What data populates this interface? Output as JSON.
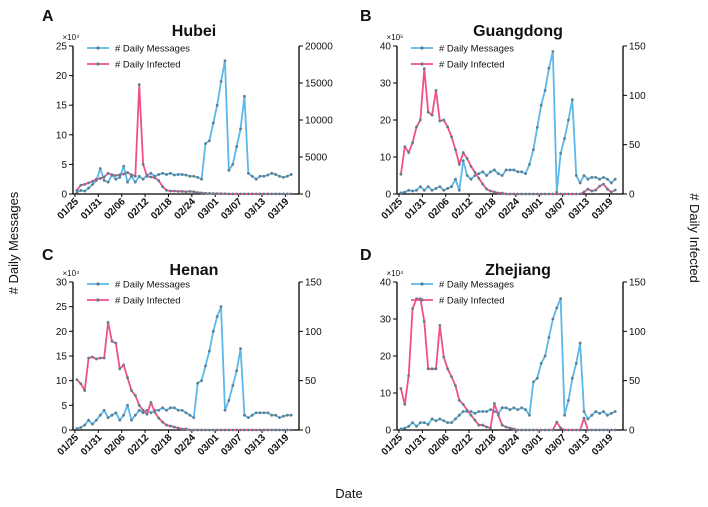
{
  "figure": {
    "xlabel": "Date",
    "ylabel_left": "# Daily Messages",
    "ylabel_right": "# Daily Infected",
    "legend_messages": "# Daily Messages",
    "legend_infected": "# Daily Infected",
    "colors": {
      "messages": "#5bb8e8",
      "infected": "#f0508a",
      "markers": "#5f7f8f",
      "axis": "#000000"
    }
  },
  "chart_data": [
    {
      "type": "line",
      "panel": "A",
      "title": "Hubei",
      "x_ticks": [
        "01/25",
        "01/31",
        "02/06",
        "02/12",
        "02/18",
        "02/24",
        "03/01",
        "03/07",
        "03/13",
        "03/19"
      ],
      "x_range": [
        0,
        58
      ],
      "left_axis": {
        "multiplier": "×10⁴",
        "ticks": [
          "0",
          "5",
          "10",
          "15",
          "20",
          "25"
        ],
        "range": [
          0,
          25
        ]
      },
      "right_axis": {
        "ticks": [
          "0",
          "5000",
          "10000",
          "15000",
          "20000"
        ],
        "range": [
          0,
          20000
        ]
      },
      "series": [
        {
          "name": "# Daily Messages",
          "axis": "left",
          "values": [
            0.3,
            0.6,
            0.5,
            1.0,
            1.6,
            2.3,
            4.3,
            2.3,
            2.0,
            3.2,
            2.5,
            2.8,
            4.7,
            2.0,
            3.0,
            2.0,
            3.0,
            2.5,
            3.2,
            3.5,
            3.0,
            3.3,
            3.5,
            3.3,
            3.5,
            3.2,
            3.3,
            3.3,
            3.2,
            3.0,
            3.0,
            2.8,
            2.5,
            8.5,
            9.0,
            12.0,
            15.0,
            19.0,
            22.5,
            4.0,
            5.0,
            8.0,
            11.0,
            16.5,
            3.5,
            3.0,
            2.5,
            3.0,
            3.0,
            3.2,
            3.5,
            3.3,
            3.0,
            2.8,
            3.0,
            3.3
          ]
        },
        {
          "name": "# Daily Infected",
          "axis": "right",
          "values": [
            500,
            1200,
            1300,
            1500,
            1700,
            2000,
            2100,
            2300,
            2800,
            2600,
            2500,
            2600,
            2700,
            2900,
            2600,
            2400,
            14800,
            4000,
            2400,
            2300,
            2200,
            1800,
            1000,
            500,
            400,
            400,
            350,
            350,
            300,
            350,
            300,
            200,
            150,
            100,
            80,
            60,
            50,
            40,
            30,
            20,
            20,
            20,
            15,
            10,
            10,
            10,
            10,
            10,
            10,
            10,
            10,
            10,
            10,
            10,
            10,
            10
          ]
        }
      ]
    },
    {
      "type": "line",
      "panel": "B",
      "title": "Guangdong",
      "x_ticks": [
        "01/25",
        "01/31",
        "02/06",
        "02/12",
        "02/18",
        "02/24",
        "03/01",
        "03/07",
        "03/13",
        "03/19"
      ],
      "x_range": [
        0,
        58
      ],
      "left_axis": {
        "multiplier": "×10⁵",
        "ticks": [
          "0",
          "10",
          "20",
          "30",
          "40"
        ],
        "range": [
          0,
          40
        ]
      },
      "right_axis": {
        "ticks": [
          "0",
          "50",
          "100",
          "150"
        ],
        "range": [
          0,
          150
        ]
      },
      "series": [
        {
          "name": "# Daily Messages",
          "axis": "left",
          "values": [
            0.3,
            0.5,
            1.0,
            0.8,
            1.0,
            2.0,
            1.0,
            2.0,
            1.0,
            1.5,
            2.0,
            1.0,
            1.5,
            2.0,
            4.0,
            1.0,
            9.0,
            5.0,
            4.0,
            5.0,
            5.5,
            6.0,
            5.0,
            6.0,
            6.5,
            5.5,
            5.0,
            6.5,
            6.5,
            6.5,
            6.0,
            6.0,
            5.5,
            8.0,
            12.0,
            18.0,
            24.0,
            28.0,
            34.0,
            38.5,
            0.5,
            11.0,
            15.0,
            20.0,
            25.5,
            5.0,
            3.0,
            5.0,
            4.0,
            4.5,
            4.5,
            4.0,
            4.5,
            4.0,
            3.0,
            4.0
          ]
        },
        {
          "name": "# Daily Infected",
          "axis": "right",
          "values": [
            20,
            48,
            42,
            52,
            68,
            75,
            127,
            83,
            80,
            105,
            74,
            75,
            68,
            58,
            45,
            30,
            42,
            36,
            28,
            22,
            16,
            10,
            5,
            3,
            2,
            1,
            1,
            0,
            0,
            0,
            0,
            0,
            0,
            0,
            0,
            0,
            0,
            0,
            0,
            0,
            0,
            0,
            0,
            0,
            0,
            0,
            0,
            2,
            5,
            3,
            4,
            8,
            10,
            5,
            2,
            4
          ]
        }
      ]
    },
    {
      "type": "line",
      "panel": "C",
      "title": "Henan",
      "x_ticks": [
        "01/25",
        "01/31",
        "02/06",
        "02/12",
        "02/18",
        "02/24",
        "03/01",
        "03/07",
        "03/13",
        "03/19"
      ],
      "x_range": [
        0,
        58
      ],
      "left_axis": {
        "multiplier": "×10⁴",
        "ticks": [
          "0",
          "5",
          "10",
          "15",
          "20",
          "25",
          "30"
        ],
        "range": [
          0,
          30
        ]
      },
      "right_axis": {
        "ticks": [
          "0",
          "50",
          "100",
          "150"
        ],
        "range": [
          0,
          150
        ]
      },
      "series": [
        {
          "name": "# Daily Messages",
          "axis": "left",
          "values": [
            0.3,
            0.5,
            1.0,
            2.0,
            1.2,
            2.0,
            3.0,
            4.0,
            2.5,
            3.0,
            3.5,
            2.0,
            3.0,
            5.0,
            2.0,
            3.0,
            4.0,
            3.5,
            4.0,
            3.5,
            4.0,
            4.0,
            4.5,
            4.0,
            4.5,
            4.5,
            4.0,
            4.0,
            3.5,
            3.0,
            2.5,
            9.5,
            10.0,
            13.0,
            16.0,
            20.0,
            23.0,
            25.0,
            4.0,
            6.0,
            9.0,
            12.0,
            16.5,
            3.0,
            2.5,
            3.0,
            3.5,
            3.5,
            3.5,
            3.5,
            3.0,
            3.0,
            2.5,
            2.8,
            3.0,
            3.0
          ]
        },
        {
          "name": "# Daily Infected",
          "axis": "right",
          "values": [
            51,
            47,
            40,
            73,
            74,
            72,
            73,
            73,
            109,
            90,
            88,
            62,
            66,
            53,
            40,
            35,
            25,
            20,
            16,
            28,
            18,
            12,
            8,
            5,
            4,
            3,
            2,
            1,
            1,
            0,
            0,
            0,
            0,
            0,
            0,
            0,
            0,
            0,
            0,
            0,
            0,
            0,
            0,
            0,
            0,
            0,
            0,
            0,
            0,
            0,
            0,
            0,
            0,
            0,
            0,
            0
          ]
        }
      ]
    },
    {
      "type": "line",
      "panel": "D",
      "title": "Zhejiang",
      "x_ticks": [
        "01/25",
        "01/31",
        "02/06",
        "02/12",
        "02/18",
        "02/24",
        "03/01",
        "03/07",
        "03/13",
        "03/19"
      ],
      "x_range": [
        0,
        58
      ],
      "left_axis": {
        "multiplier": "×10⁴",
        "ticks": [
          "0",
          "10",
          "20",
          "30",
          "40"
        ],
        "range": [
          0,
          40
        ]
      },
      "right_axis": {
        "ticks": [
          "0",
          "50",
          "100",
          "150"
        ],
        "range": [
          0,
          150
        ]
      },
      "series": [
        {
          "name": "# Daily Messages",
          "axis": "left",
          "values": [
            0.3,
            0.5,
            1.0,
            2.0,
            1.0,
            2.0,
            2.0,
            1.5,
            3.0,
            2.5,
            3.0,
            2.5,
            2.0,
            2.0,
            3.0,
            4.0,
            5.0,
            5.0,
            5.0,
            4.5,
            5.0,
            5.0,
            5.0,
            5.5,
            5.0,
            4.5,
            6.0,
            6.0,
            5.5,
            6.0,
            5.5,
            6.0,
            5.5,
            4.0,
            13.0,
            14.0,
            18.0,
            20.0,
            25.0,
            30.0,
            33.0,
            35.5,
            4.0,
            8.0,
            14.0,
            18.0,
            23.5,
            5.0,
            3.0,
            4.0,
            5.0,
            4.5,
            5.0,
            4.0,
            4.5,
            5.0
          ]
        },
        {
          "name": "# Daily Infected",
          "axis": "right",
          "values": [
            42,
            26,
            55,
            123,
            133,
            133,
            110,
            62,
            62,
            62,
            106,
            74,
            62,
            54,
            45,
            30,
            26,
            20,
            15,
            10,
            5,
            5,
            3,
            2,
            27,
            15,
            5,
            3,
            2,
            1,
            0,
            0,
            0,
            0,
            0,
            0,
            0,
            0,
            0,
            0,
            8,
            2,
            0,
            0,
            0,
            0,
            0,
            12,
            0,
            0,
            0,
            0,
            0,
            0,
            0,
            0
          ]
        }
      ]
    }
  ]
}
